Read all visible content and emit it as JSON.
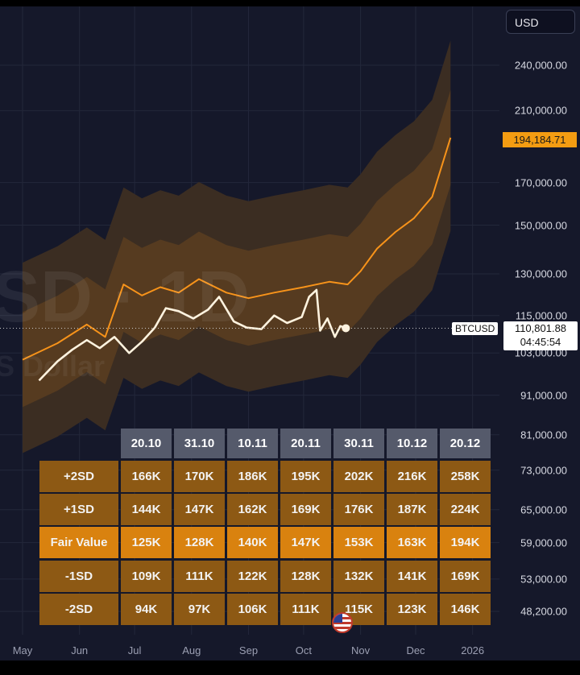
{
  "currency_button": "USD",
  "watermark": {
    "symbol": "SD · 1D",
    "subtitle": "S Dollar"
  },
  "last_price_tag": "194,184.71",
  "btc_tag": {
    "symbol": "BTCUSD",
    "price": "110,801.88",
    "countdown": "04:45:54"
  },
  "colors": {
    "background": "#15182a",
    "fair_value_line": "#f7931a",
    "price_line": "#fff3df",
    "band_outer": "#3b2d22",
    "band_inner": "#5c3e20"
  },
  "chart_data": {
    "type": "line",
    "symbol": "BTCUSD",
    "x_ticks": [
      "May",
      "Jun",
      "Jul",
      "Aug",
      "Sep",
      "Oct",
      "Nov",
      "Dec",
      "2026"
    ],
    "y_ticks": [
      240000,
      210000,
      170000,
      150000,
      130000,
      115000,
      103000,
      91000,
      81000,
      73000,
      65000,
      59000,
      53000,
      48200
    ],
    "y_tick_labels": [
      "240,000.00",
      "210,000.00",
      "170,000.00",
      "150,000.00",
      "130,000.00",
      "115,000.00",
      "103,000.00",
      "91,000.00",
      "81,000.00",
      "73,000.00",
      "65,000.00",
      "59,000.00",
      "53,000.00",
      "48,200.00"
    ],
    "y_scale": "log",
    "ylim": [
      45000,
      270000
    ],
    "x_range_months": [
      "May 2025",
      "Dec 2025"
    ],
    "grid": true,
    "series": [
      {
        "name": "BTCUSD",
        "points": [
          [
            "2025-05-10",
            95000
          ],
          [
            "2025-05-20",
            100500
          ],
          [
            "2025-05-28",
            104000
          ],
          [
            "2025-06-05",
            107000
          ],
          [
            "2025-06-12",
            104500
          ],
          [
            "2025-06-20",
            108000
          ],
          [
            "2025-06-28",
            103000
          ],
          [
            "2025-07-05",
            106500
          ],
          [
            "2025-07-12",
            111000
          ],
          [
            "2025-07-18",
            117500
          ],
          [
            "2025-07-25",
            116500
          ],
          [
            "2025-08-02",
            114000
          ],
          [
            "2025-08-10",
            117000
          ],
          [
            "2025-08-16",
            121500
          ],
          [
            "2025-08-24",
            113000
          ],
          [
            "2025-08-31",
            111000
          ],
          [
            "2025-09-08",
            110500
          ],
          [
            "2025-09-15",
            115000
          ],
          [
            "2025-09-22",
            112500
          ],
          [
            "2025-09-30",
            114500
          ],
          [
            "2025-10-04",
            121500
          ],
          [
            "2025-10-08",
            124000
          ],
          [
            "2025-10-10",
            110000
          ],
          [
            "2025-10-14",
            114000
          ],
          [
            "2025-10-18",
            108000
          ],
          [
            "2025-10-21",
            111500
          ],
          [
            "2025-10-24",
            110800
          ]
        ]
      },
      {
        "name": "Fair Value",
        "points": [
          [
            "2025-05-01",
            101000
          ],
          [
            "2025-05-20",
            106000
          ],
          [
            "2025-06-05",
            112000
          ],
          [
            "2025-06-15",
            108000
          ],
          [
            "2025-06-25",
            126000
          ],
          [
            "2025-07-05",
            122000
          ],
          [
            "2025-07-15",
            125000
          ],
          [
            "2025-07-25",
            123000
          ],
          [
            "2025-08-05",
            128000
          ],
          [
            "2025-08-20",
            123000
          ],
          [
            "2025-09-01",
            121000
          ],
          [
            "2025-09-15",
            123000
          ],
          [
            "2025-10-01",
            125000
          ],
          [
            "2025-10-15",
            127000
          ],
          [
            "2025-10-25",
            126000
          ],
          [
            "2025-11-01",
            131000
          ],
          [
            "2025-11-10",
            140000
          ],
          [
            "2025-11-20",
            147000
          ],
          [
            "2025-11-30",
            153000
          ],
          [
            "2025-12-10",
            163000
          ],
          [
            "2025-12-20",
            194000
          ]
        ]
      }
    ]
  },
  "table": {
    "dates": [
      "20.10",
      "31.10",
      "10.11",
      "20.11",
      "30.11",
      "10.12",
      "20.12"
    ],
    "rows": [
      {
        "label": "+2SD",
        "values": [
          "166K",
          "170K",
          "186K",
          "195K",
          "202K",
          "216K",
          "258K"
        ]
      },
      {
        "label": "+1SD",
        "values": [
          "144K",
          "147K",
          "162K",
          "169K",
          "176K",
          "187K",
          "224K"
        ]
      },
      {
        "label": "Fair Value",
        "values": [
          "125K",
          "128K",
          "140K",
          "147K",
          "153K",
          "163K",
          "194K"
        ]
      },
      {
        "label": "-1SD",
        "values": [
          "109K",
          "111K",
          "122K",
          "128K",
          "132K",
          "141K",
          "169K"
        ]
      },
      {
        "label": "-2SD",
        "values": [
          "94K",
          "97K",
          "106K",
          "111K",
          "115K",
          "123K",
          "146K"
        ]
      }
    ]
  }
}
